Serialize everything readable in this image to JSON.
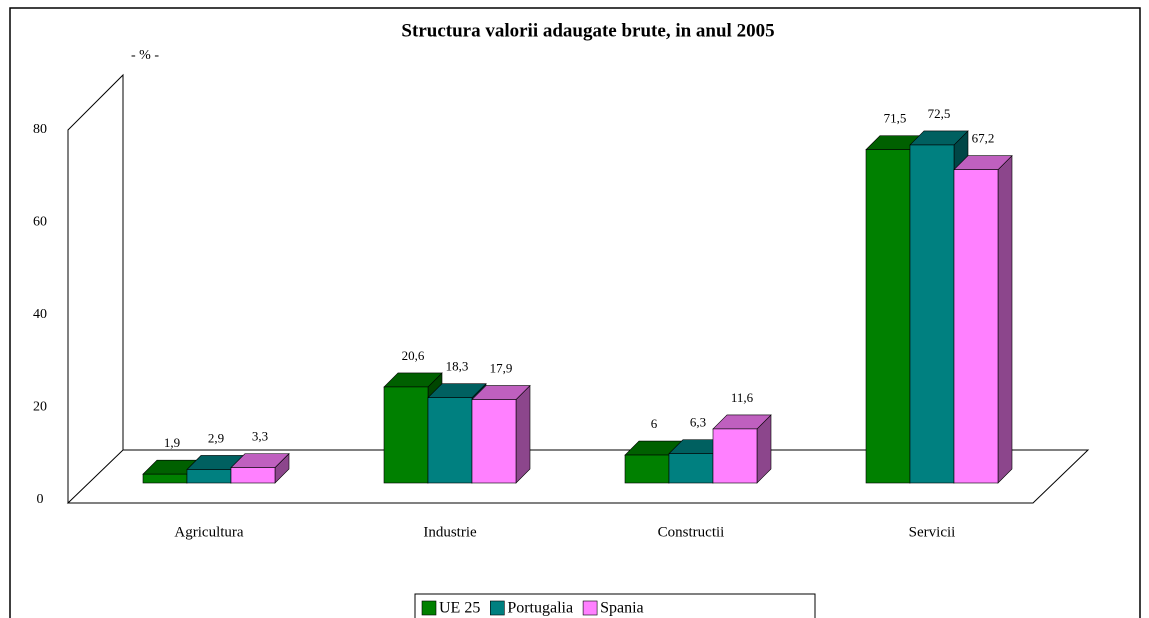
{
  "chart_data": {
    "type": "bar3d",
    "title": "Structura valorii adaugate brute, in anul 2005",
    "y_label": "- % -",
    "categories": [
      "Agricultura",
      "Industrie",
      "Constructii",
      "Servicii"
    ],
    "series": [
      {
        "name": "UE 25",
        "color": "#008000",
        "values": [
          1.9,
          20.6,
          6,
          71.5
        ],
        "value_labels": [
          "1,9",
          "20,6",
          "6",
          "71,5"
        ]
      },
      {
        "name": "Portugalia",
        "color": "#008080",
        "values": [
          2.9,
          18.3,
          6.3,
          72.5
        ],
        "value_labels": [
          "2,9",
          "18,3",
          "6,3",
          "72,5"
        ]
      },
      {
        "name": "Spania",
        "color": "#ff80ff",
        "values": [
          3.3,
          17.9,
          11.6,
          67.2
        ],
        "value_labels": [
          "3,3",
          "17,9",
          "11,6",
          "67,2"
        ]
      }
    ],
    "ylim": [
      0,
      80
    ],
    "yticks": [
      0,
      20,
      40,
      60,
      80
    ],
    "grid": false,
    "legend": "bottom"
  }
}
